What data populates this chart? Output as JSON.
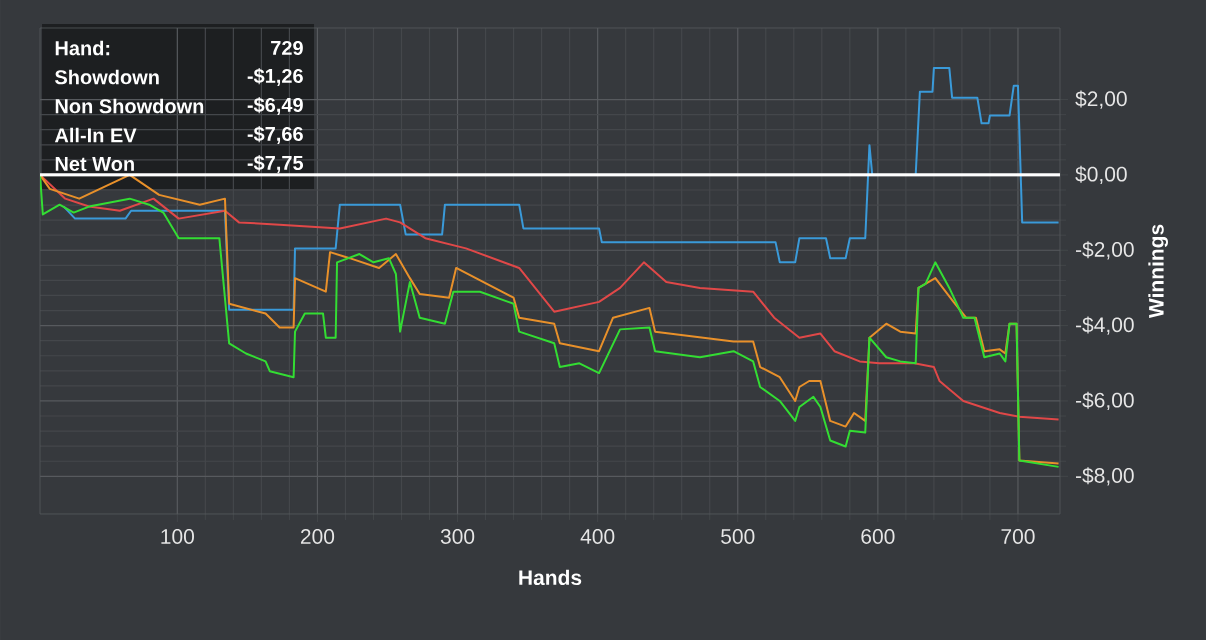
{
  "chart_data": {
    "type": "line",
    "xlabel": "Hands",
    "ylabel": "Winnings",
    "xlim": [
      2,
      730
    ],
    "ylim": [
      -9,
      3.9
    ],
    "xticks": [
      100,
      200,
      300,
      400,
      500,
      600,
      700
    ],
    "yticks": [
      {
        "value": -8,
        "label": "-$8,00"
      },
      {
        "value": -6,
        "label": "-$6,00"
      },
      {
        "value": -4,
        "label": "-$4,00"
      },
      {
        "value": -2,
        "label": "-$2,00"
      },
      {
        "value": 0,
        "label": "$0,00"
      },
      {
        "value": 2,
        "label": "$2,00"
      }
    ],
    "grid": true,
    "marker": "none",
    "line_style": "solid",
    "ref_lines": [
      {
        "axis": "y",
        "value": 0,
        "color": "#ffffff"
      }
    ],
    "annotations": [
      "Hand:",
      "729",
      "Showdown",
      "-$1,26",
      "Non Showdown",
      "-$6,49",
      "All-In EV",
      "-$7,66",
      "Net Won",
      "-$7,75"
    ],
    "series": [
      {
        "color": "#3a9ad9",
        "x": [
          19,
          27,
          63,
          67,
          134,
          137,
          183,
          184,
          213,
          216,
          259,
          263,
          289,
          291,
          344,
          347,
          401,
          403,
          527,
          530,
          541,
          544,
          563,
          566,
          577,
          580,
          591,
          594,
          596,
          627,
          630,
          639,
          640,
          651,
          653,
          671,
          674,
          679,
          680,
          694,
          697,
          700,
          703,
          729
        ],
        "values": [
          -0.84,
          -1.16,
          -1.16,
          -0.95,
          -0.95,
          -3.58,
          -3.58,
          -1.95,
          -1.95,
          -0.79,
          -0.79,
          -1.58,
          -1.58,
          -0.79,
          -0.79,
          -1.42,
          -1.42,
          -1.79,
          -1.79,
          -2.32,
          -2.32,
          -1.68,
          -1.68,
          -2.21,
          -2.21,
          -1.68,
          -1.68,
          0.79,
          0,
          0,
          2.21,
          2.21,
          2.84,
          2.84,
          2.05,
          2.05,
          1.37,
          1.37,
          1.58,
          1.58,
          2.37,
          2.37,
          -1.26,
          -1.26
        ]
      },
      {
        "color": "#e04848",
        "x": [
          2,
          20,
          37,
          59,
          83,
          101,
          134,
          144,
          173,
          216,
          249,
          259,
          277,
          306,
          344,
          369,
          401,
          416,
          433,
          449,
          473,
          511,
          526,
          544,
          559,
          569,
          587,
          601,
          626,
          640,
          644,
          661,
          687,
          701,
          729
        ],
        "values": [
          0,
          -0.63,
          -0.84,
          -0.95,
          -0.63,
          -1.16,
          -0.95,
          -1.26,
          -1.32,
          -1.42,
          -1.16,
          -1.26,
          -1.68,
          -1.95,
          -2.47,
          -3.63,
          -3.37,
          -3.0,
          -2.32,
          -2.84,
          -3.0,
          -3.1,
          -3.79,
          -4.32,
          -4.21,
          -4.68,
          -4.95,
          -5.0,
          -5.0,
          -5.1,
          -5.47,
          -6.0,
          -6.32,
          -6.42,
          -6.49
        ]
      },
      {
        "color": "#e8902a",
        "x": [
          2,
          9,
          30,
          66,
          87,
          116,
          134,
          137,
          163,
          173,
          183,
          184,
          206,
          209,
          223,
          244,
          256,
          266,
          273,
          294,
          299,
          340,
          344,
          369,
          373,
          401,
          411,
          437,
          441,
          497,
          511,
          516,
          530,
          541,
          544,
          551,
          559,
          566,
          577,
          583,
          591,
          594,
          606,
          616,
          627,
          629,
          641,
          654,
          663,
          670,
          676,
          687,
          691,
          694,
          699,
          701,
          729
        ],
        "values": [
          0,
          -0.37,
          -0.63,
          0,
          -0.53,
          -0.79,
          -0.63,
          -3.42,
          -3.68,
          -4.05,
          -4.05,
          -2.74,
          -3.1,
          -2.05,
          -2.21,
          -2.47,
          -2.1,
          -2.74,
          -3.16,
          -3.26,
          -2.47,
          -3.26,
          -3.79,
          -3.95,
          -4.47,
          -4.68,
          -3.79,
          -3.53,
          -4.16,
          -4.42,
          -4.42,
          -5.1,
          -5.37,
          -6.0,
          -5.63,
          -5.47,
          -5.47,
          -6.53,
          -6.68,
          -6.32,
          -6.53,
          -4.32,
          -3.95,
          -4.16,
          -4.21,
          -3.0,
          -2.74,
          -3.37,
          -3.79,
          -3.79,
          -4.68,
          -4.63,
          -4.74,
          -3.95,
          -3.95,
          -7.58,
          -7.66
        ]
      },
      {
        "color": "#33dd33",
        "x": [
          2,
          4,
          16,
          26,
          37,
          66,
          80,
          90,
          101,
          130,
          137,
          149,
          163,
          166,
          183,
          184,
          191,
          204,
          206,
          213,
          214,
          230,
          240,
          251,
          256,
          259,
          266,
          273,
          291,
          297,
          316,
          340,
          344,
          369,
          373,
          387,
          401,
          416,
          437,
          441,
          473,
          497,
          511,
          516,
          530,
          541,
          544,
          554,
          559,
          566,
          577,
          580,
          591,
          594,
          606,
          616,
          627,
          629,
          634,
          641,
          651,
          661,
          669,
          676,
          687,
          691,
          694,
          699,
          701,
          729
        ],
        "values": [
          0,
          -1.05,
          -0.79,
          -1.0,
          -0.84,
          -0.63,
          -0.79,
          -1.0,
          -1.68,
          -1.68,
          -4.47,
          -4.74,
          -4.95,
          -5.21,
          -5.37,
          -4.16,
          -3.68,
          -3.68,
          -4.32,
          -4.32,
          -2.32,
          -2.1,
          -2.32,
          -2.21,
          -2.63,
          -4.16,
          -2.84,
          -3.79,
          -3.95,
          -3.1,
          -3.1,
          -3.42,
          -4.16,
          -4.47,
          -5.1,
          -5.0,
          -5.26,
          -4.1,
          -4.05,
          -4.68,
          -4.84,
          -4.68,
          -4.95,
          -5.63,
          -6.0,
          -6.53,
          -6.16,
          -5.89,
          -6.16,
          -7.05,
          -7.21,
          -6.79,
          -6.84,
          -4.32,
          -4.84,
          -4.95,
          -5.0,
          -3.0,
          -2.89,
          -2.32,
          -3.0,
          -3.79,
          -3.79,
          -4.84,
          -4.74,
          -4.95,
          -3.95,
          -3.95,
          -7.58,
          -7.75
        ]
      }
    ]
  }
}
